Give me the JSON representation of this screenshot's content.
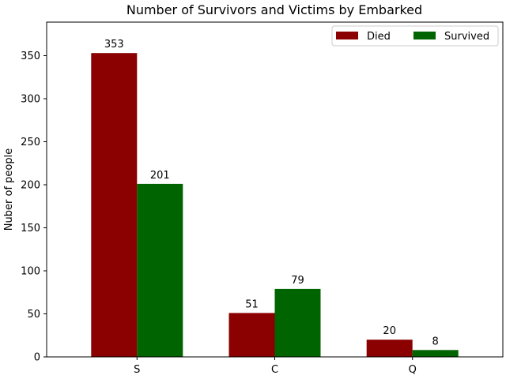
{
  "chart_data": {
    "type": "bar",
    "title": "Number of Survivors and Victims by Embarked",
    "xlabel": "",
    "ylabel": "Nuber of people",
    "categories": [
      "S",
      "C",
      "Q"
    ],
    "series": [
      {
        "name": "Died",
        "values": [
          353,
          51,
          20
        ],
        "color": "#8b0000"
      },
      {
        "name": "Survived",
        "values": [
          201,
          79,
          8
        ],
        "color": "#006400"
      }
    ],
    "ylim": [
      0,
      389
    ],
    "yticks": [
      0,
      50,
      100,
      150,
      200,
      250,
      300,
      350
    ],
    "legend_position": "top-right"
  }
}
